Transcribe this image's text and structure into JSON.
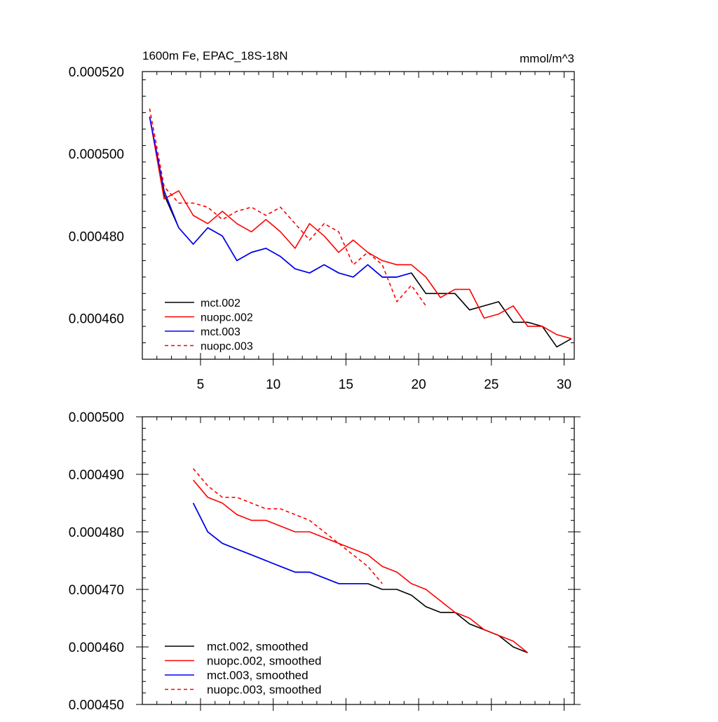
{
  "chart_data": [
    {
      "type": "line",
      "title_left": "1600m Fe, EPAC_18S-18N",
      "title_right": "mmol/m^3",
      "xlabel": "",
      "ylabel": "",
      "xlim": [
        1,
        30.7
      ],
      "ylim": [
        0.00045,
        0.00052
      ],
      "x_ticks": [
        5,
        10,
        15,
        20,
        25,
        30
      ],
      "y_ticks": [
        0.00046,
        0.00048,
        0.0005,
        0.00052
      ],
      "y_tick_labels": [
        "0.000460",
        "0.000480",
        "0.000500",
        "0.000520"
      ],
      "legend_position": "bottom-left",
      "series": [
        {
          "name": "mct.002",
          "color": "#000000",
          "dash": "solid",
          "x": [
            1.5,
            2.5,
            3.5,
            4.5,
            5.5,
            6.5,
            7.5,
            8.5,
            9.5,
            10.5,
            11.5,
            12.5,
            13.5,
            14.5,
            15.5,
            16.5,
            17.5,
            18.5,
            19.5,
            20.5,
            21.5,
            22.5,
            23.5,
            24.5,
            25.5,
            26.5,
            27.5,
            28.5,
            29.5,
            30.5
          ],
          "values": [
            0.000509,
            0.00049,
            0.000482,
            0.000478,
            0.000482,
            0.00048,
            0.000474,
            0.000476,
            0.000477,
            0.000475,
            0.000472,
            0.000471,
            0.000473,
            0.000471,
            0.00047,
            0.000473,
            0.00047,
            0.00047,
            0.000471,
            0.000466,
            0.000466,
            0.000466,
            0.000462,
            0.000463,
            0.000464,
            0.000459,
            0.000459,
            0.000458,
            0.000453,
            0.000455
          ]
        },
        {
          "name": "nuopc.002",
          "color": "#ff0000",
          "dash": "solid",
          "x": [
            1.5,
            2.5,
            3.5,
            4.5,
            5.5,
            6.5,
            7.5,
            8.5,
            9.5,
            10.5,
            11.5,
            12.5,
            13.5,
            14.5,
            15.5,
            16.5,
            17.5,
            18.5,
            19.5,
            20.5,
            21.5,
            22.5,
            23.5,
            24.5,
            25.5,
            26.5,
            27.5,
            28.5,
            29.5,
            30.5
          ],
          "values": [
            0.000509,
            0.000489,
            0.000491,
            0.000485,
            0.000483,
            0.000486,
            0.000483,
            0.000481,
            0.000484,
            0.000481,
            0.000477,
            0.000483,
            0.00048,
            0.000476,
            0.000479,
            0.000476,
            0.000474,
            0.000473,
            0.000473,
            0.00047,
            0.000465,
            0.000467,
            0.000467,
            0.00046,
            0.000461,
            0.000463,
            0.000458,
            0.000458,
            0.000456,
            0.000455
          ]
        },
        {
          "name": "mct.003",
          "color": "#0000ff",
          "dash": "solid",
          "x": [
            1.5,
            2.5,
            3.5,
            4.5,
            5.5,
            6.5,
            7.5,
            8.5,
            9.5,
            10.5,
            11.5,
            12.5,
            13.5,
            14.5,
            15.5,
            16.5,
            17.5,
            18.5,
            19.5
          ],
          "values": [
            0.000509,
            0.000491,
            0.000482,
            0.000478,
            0.000482,
            0.00048,
            0.000474,
            0.000476,
            0.000477,
            0.000475,
            0.000472,
            0.000471,
            0.000473,
            0.000471,
            0.00047,
            0.000473,
            0.00047,
            0.00047,
            0.000471
          ]
        },
        {
          "name": "nuopc.003",
          "color": "#ff0000",
          "dash": "dashed",
          "x": [
            1.5,
            2.5,
            3.5,
            4.5,
            5.5,
            6.5,
            7.5,
            8.5,
            9.5,
            10.5,
            11.5,
            12.5,
            13.5,
            14.5,
            15.5,
            16.5,
            17.5,
            18.5,
            19.5,
            20.5
          ],
          "values": [
            0.000511,
            0.000492,
            0.000488,
            0.000488,
            0.000487,
            0.000484,
            0.000486,
            0.000487,
            0.000485,
            0.000487,
            0.000483,
            0.000479,
            0.000483,
            0.000481,
            0.000473,
            0.000476,
            0.000473,
            0.000464,
            0.000468,
            0.000463
          ]
        }
      ]
    },
    {
      "type": "line",
      "xlabel": "",
      "ylabel": "",
      "xlim": [
        1,
        30.7
      ],
      "ylim": [
        0.00045,
        0.0005
      ],
      "x_ticks": [
        5,
        10,
        15,
        20,
        25,
        30
      ],
      "y_ticks": [
        0.00045,
        0.00046,
        0.00047,
        0.00048,
        0.00049,
        0.0005
      ],
      "y_tick_labels": [
        "0.000450",
        "0.000460",
        "0.000470",
        "0.000480",
        "0.000490",
        "0.000500"
      ],
      "legend_position": "bottom-left",
      "series": [
        {
          "name": "mct.002, smoothed",
          "color": "#000000",
          "dash": "solid",
          "x": [
            4.5,
            5.5,
            6.5,
            7.5,
            8.5,
            9.5,
            10.5,
            11.5,
            12.5,
            13.5,
            14.5,
            15.5,
            16.5,
            17.5,
            18.5,
            19.5,
            20.5,
            21.5,
            22.5,
            23.5,
            24.5,
            25.5,
            26.5,
            27.5
          ],
          "values": [
            0.000485,
            0.00048,
            0.000478,
            0.000477,
            0.000476,
            0.000475,
            0.000474,
            0.000473,
            0.000473,
            0.000472,
            0.000471,
            0.000471,
            0.000471,
            0.00047,
            0.00047,
            0.000469,
            0.000467,
            0.000466,
            0.000466,
            0.000464,
            0.000463,
            0.000462,
            0.00046,
            0.000459
          ]
        },
        {
          "name": "nuopc.002, smoothed",
          "color": "#ff0000",
          "dash": "solid",
          "x": [
            4.5,
            5.5,
            6.5,
            7.5,
            8.5,
            9.5,
            10.5,
            11.5,
            12.5,
            13.5,
            14.5,
            15.5,
            16.5,
            17.5,
            18.5,
            19.5,
            20.5,
            21.5,
            22.5,
            23.5,
            24.5,
            25.5,
            26.5,
            27.5
          ],
          "values": [
            0.000489,
            0.000486,
            0.000485,
            0.000483,
            0.000482,
            0.000482,
            0.000481,
            0.00048,
            0.00048,
            0.000479,
            0.000478,
            0.000477,
            0.000476,
            0.000474,
            0.000473,
            0.000471,
            0.00047,
            0.000468,
            0.000466,
            0.000465,
            0.000463,
            0.000462,
            0.000461,
            0.000459
          ]
        },
        {
          "name": "mct.003, smoothed",
          "color": "#0000ff",
          "dash": "solid",
          "x": [
            4.5,
            5.5,
            6.5,
            7.5,
            8.5,
            9.5,
            10.5,
            11.5,
            12.5,
            13.5,
            14.5,
            15.5,
            16.5
          ],
          "values": [
            0.000485,
            0.00048,
            0.000478,
            0.000477,
            0.000476,
            0.000475,
            0.000474,
            0.000473,
            0.000473,
            0.000472,
            0.000471,
            0.000471,
            0.000471
          ]
        },
        {
          "name": "nuopc.003, smoothed",
          "color": "#ff0000",
          "dash": "dashed",
          "x": [
            4.5,
            5.5,
            6.5,
            7.5,
            8.5,
            9.5,
            10.5,
            11.5,
            12.5,
            13.5,
            14.5,
            15.5,
            16.5,
            17.5
          ],
          "values": [
            0.000491,
            0.000488,
            0.000486,
            0.000486,
            0.000485,
            0.000484,
            0.000484,
            0.000483,
            0.000482,
            0.00048,
            0.000478,
            0.000476,
            0.000474,
            0.000471
          ]
        }
      ]
    }
  ]
}
